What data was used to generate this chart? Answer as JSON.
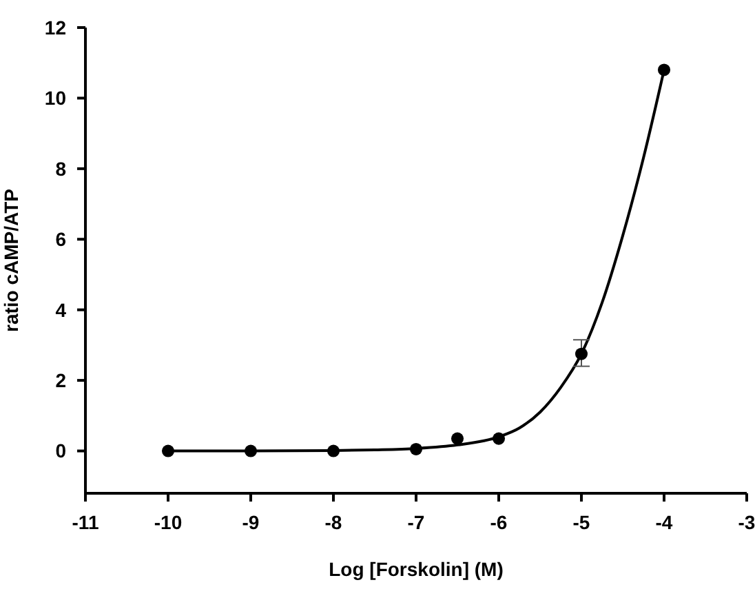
{
  "chart_data": {
    "type": "scatter",
    "xlabel": "Log [Forskolin] (M)",
    "ylabel": "ratio cAMP/ATP",
    "xlim": [
      -11,
      -3
    ],
    "xticks": [
      -11,
      -10,
      -9,
      -8,
      -7,
      -6,
      -5,
      -4,
      -3
    ],
    "ylim": [
      -1.2,
      12
    ],
    "yticks": [
      0,
      2,
      4,
      6,
      8,
      10,
      12
    ],
    "grid": false,
    "legend": false,
    "marker": "circle",
    "series": [
      {
        "color": "#000000",
        "x": [
          -10,
          -9,
          -8,
          -7,
          -6.5,
          -6,
          -5,
          -4
        ],
        "values": [
          0,
          0,
          0,
          0.05,
          0.35,
          0.35,
          2.75,
          10.8
        ],
        "errors": [
          null,
          null,
          null,
          null,
          null,
          null,
          [
            2.4,
            3.15
          ],
          null
        ]
      },
      {
        "type": "line",
        "color": "#000000",
        "marker": "none",
        "line_style": "solid",
        "x": [
          -10,
          -9,
          -8,
          -7.5,
          -7,
          -6.5,
          -6,
          -5.75,
          -5.5,
          -5.25,
          -5,
          -4.75,
          -4.5,
          -4.25,
          -4
        ],
        "values": [
          0,
          0,
          0.01,
          0.03,
          0.07,
          0.17,
          0.4,
          0.65,
          1.1,
          1.8,
          2.75,
          4.2,
          6.1,
          8.3,
          10.8
        ]
      }
    ]
  }
}
